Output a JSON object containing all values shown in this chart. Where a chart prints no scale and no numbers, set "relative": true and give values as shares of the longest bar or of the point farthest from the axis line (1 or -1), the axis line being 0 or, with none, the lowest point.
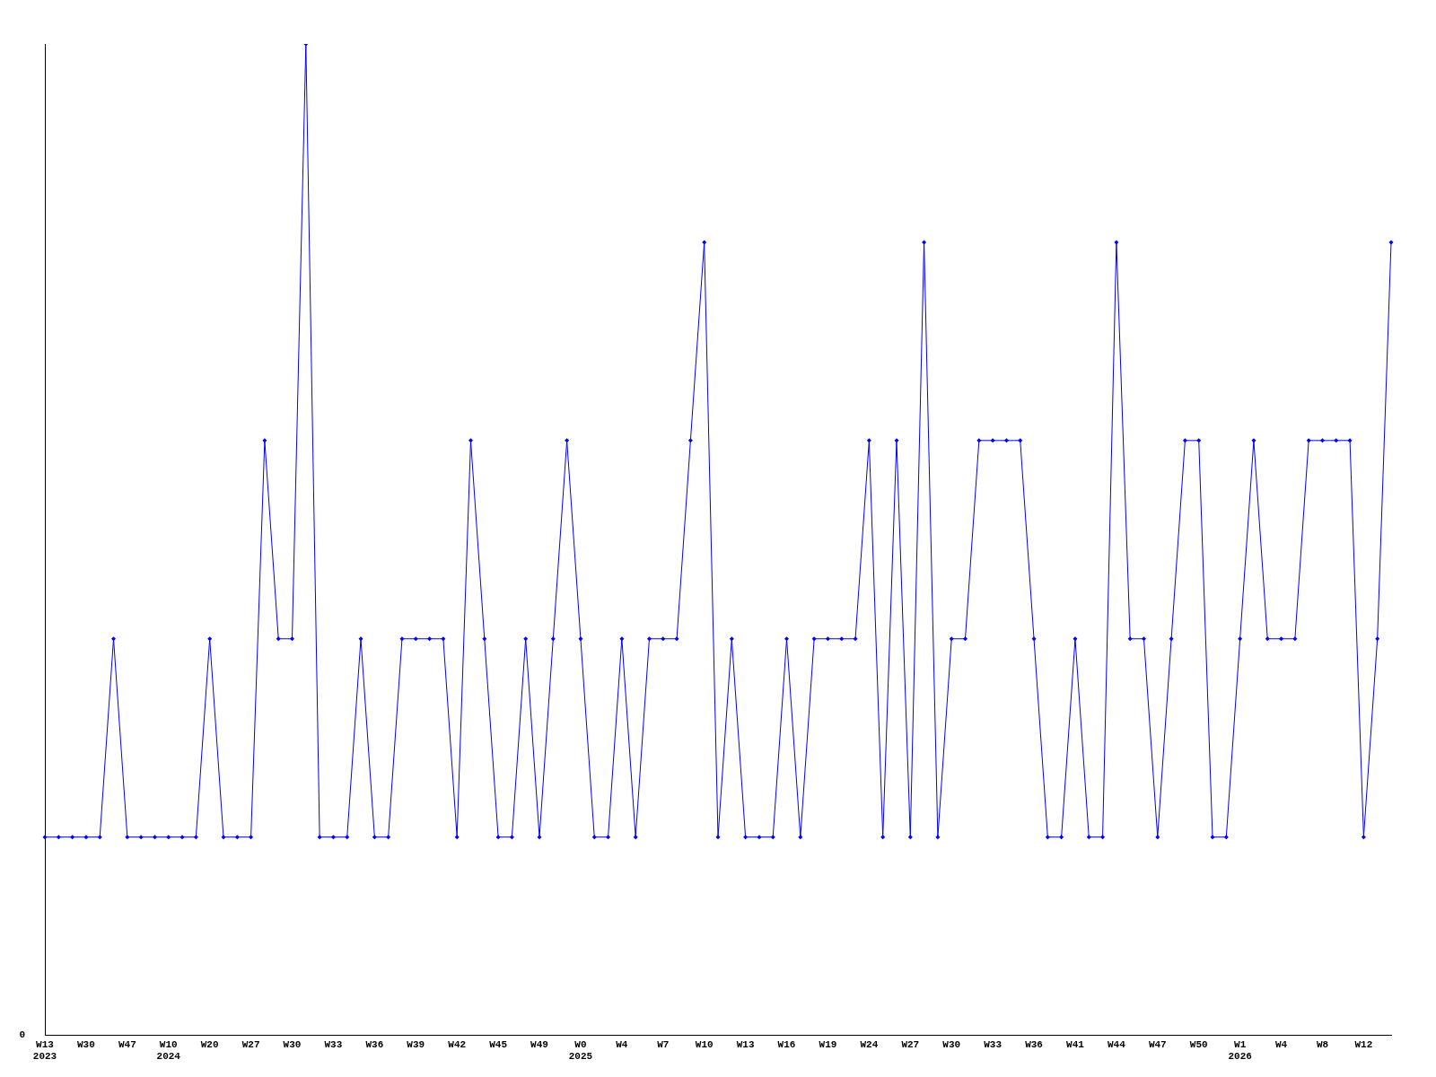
{
  "chart_data": {
    "type": "line",
    "relative": true,
    "color": "#0000ff",
    "marker": "diamond",
    "grid": false,
    "legend": false,
    "annotations": [
      "0"
    ],
    "categories": [
      "W13\n2023",
      null,
      null,
      "W30",
      null,
      null,
      "W47",
      null,
      null,
      "W10\n2024",
      null,
      null,
      "W20",
      null,
      null,
      "W27",
      null,
      null,
      "W30",
      null,
      null,
      "W33",
      null,
      null,
      "W36",
      null,
      null,
      "W39",
      null,
      null,
      "W42",
      null,
      null,
      "W45",
      null,
      null,
      "W49",
      null,
      null,
      "W0\n2025",
      null,
      null,
      "W4",
      null,
      null,
      "W7",
      null,
      null,
      "W10",
      null,
      null,
      "W13",
      null,
      null,
      "W16",
      null,
      null,
      "W19",
      null,
      null,
      "W24",
      null,
      null,
      "W27",
      null,
      null,
      "W30",
      null,
      null,
      "W33",
      null,
      null,
      "W36",
      null,
      null,
      "W41",
      null,
      null,
      "W44",
      null,
      null,
      "W47",
      null,
      null,
      "W50",
      null,
      null,
      "W1\n2026",
      null,
      null,
      "W4",
      null,
      null,
      "W8",
      null,
      null,
      "W12",
      null,
      null
    ],
    "values": [
      0.2,
      0.2,
      0.2,
      0.2,
      0.2,
      0.4,
      0.2,
      0.2,
      0.2,
      0.2,
      0.2,
      0.2,
      0.4,
      0.2,
      0.2,
      0.2,
      0.6,
      0.4,
      0.4,
      1,
      0.2,
      0.2,
      0.2,
      0.4,
      0.2,
      0.2,
      0.4,
      0.4,
      0.4,
      0.4,
      0.2,
      0.6,
      0.4,
      0.2,
      0.2,
      0.4,
      0.2,
      0.4,
      0.6,
      0.4,
      0.2,
      0.2,
      0.4,
      0.2,
      0.4,
      0.4,
      0.4,
      0.6,
      0.8,
      0.2,
      0.4,
      0.2,
      0.2,
      0.2,
      0.4,
      0.2,
      0.4,
      0.4,
      0.4,
      0.4,
      0.6,
      0.2,
      0.6,
      0.2,
      0.8,
      0.2,
      0.4,
      0.4,
      0.6,
      0.6,
      0.6,
      0.6,
      0.4,
      0.2,
      0.2,
      0.4,
      0.2,
      0.2,
      0.8,
      0.4,
      0.4,
      0.2,
      0.4,
      0.6,
      0.6,
      0.2,
      0.2,
      0.4,
      0.6,
      0.4,
      0.4,
      0.4,
      0.6,
      0.6,
      0.6,
      0.6,
      0.2,
      0.4,
      0.8
    ]
  }
}
